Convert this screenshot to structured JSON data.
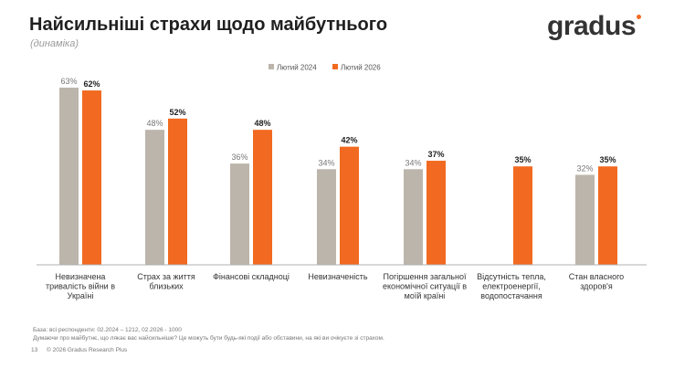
{
  "header": {
    "title": "Найсильніші страхи щодо майбутнього",
    "subtitle": "(динаміка)",
    "logo": "gradus"
  },
  "colors": {
    "series1": "#bcb5ab",
    "series2": "#f26a21",
    "axis": "#b0b0b0"
  },
  "chart_data": {
    "type": "bar",
    "title": "Найсильніші страхи щодо майбутнього",
    "categories": [
      [
        "Невизначена",
        "тривалість війни в",
        "Україні"
      ],
      [
        "Страх за життя",
        "близьких"
      ],
      [
        "Фінансові складноці"
      ],
      [
        "Невизначеність"
      ],
      [
        "Погіршення загальної",
        "економічної ситуації в",
        "моїй країні"
      ],
      [
        "Відсутність тепла,",
        "електроенергії,",
        "водопостачання"
      ],
      [
        "Стан власного",
        "здоров'я"
      ]
    ],
    "series": [
      {
        "name": "Лютий 2024",
        "values": [
          63,
          48,
          36,
          34,
          34,
          null,
          32
        ],
        "labels": [
          "63%",
          "48%",
          "36%",
          "34%",
          "34%",
          "",
          "32%"
        ]
      },
      {
        "name": "Лютий 2026",
        "values": [
          62,
          52,
          48,
          42,
          37,
          35,
          35
        ],
        "labels": [
          "62%",
          "52%",
          "48%",
          "42%",
          "37%",
          "35%",
          "35%"
        ]
      }
    ],
    "ylim": [
      0,
      70
    ],
    "legend": "top-center"
  },
  "footer": {
    "base": "База: всі респонденти: 02.2024 – 1212, 02.2026 - 1000",
    "question": "Думаючи про майбутнє, що лякає вас найсильніше? Це можуть бути будь-які події або обставини, на які ви очікуєте зі страхом.",
    "page_number": "13",
    "copyright": "© 2026 Gradus Research Plus"
  }
}
